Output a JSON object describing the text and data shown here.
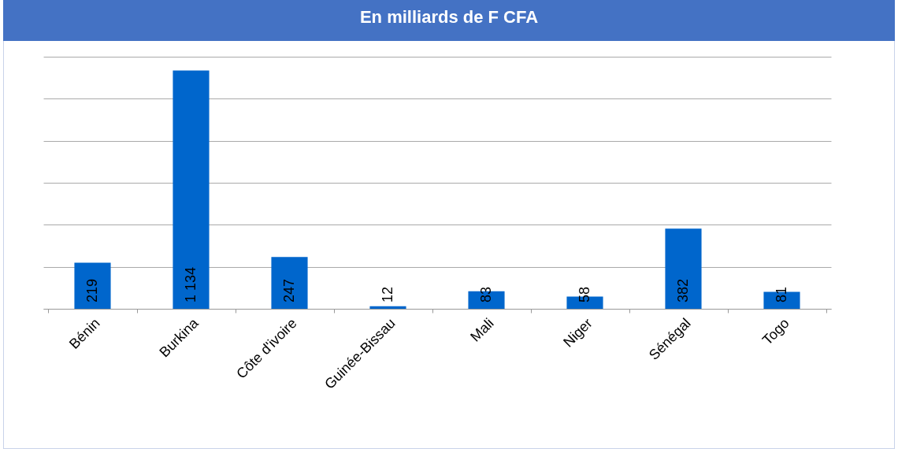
{
  "chart_data": {
    "type": "bar",
    "title": "En milliards de F CFA",
    "categories": [
      "Bénin",
      "Burkina",
      "Côte d'ivoire",
      "Guinée-Bissau",
      "Mali",
      "Niger",
      "Sénégal",
      "Togo"
    ],
    "values": [
      219,
      1134,
      247,
      12,
      83,
      58,
      382,
      81
    ],
    "color": "#0066cc",
    "ylim": [
      0,
      1200
    ],
    "yticks": [
      0,
      200,
      400,
      600,
      800,
      1000,
      1200
    ],
    "tick_labels": "x",
    "grid": "y",
    "data_labels": true
  }
}
